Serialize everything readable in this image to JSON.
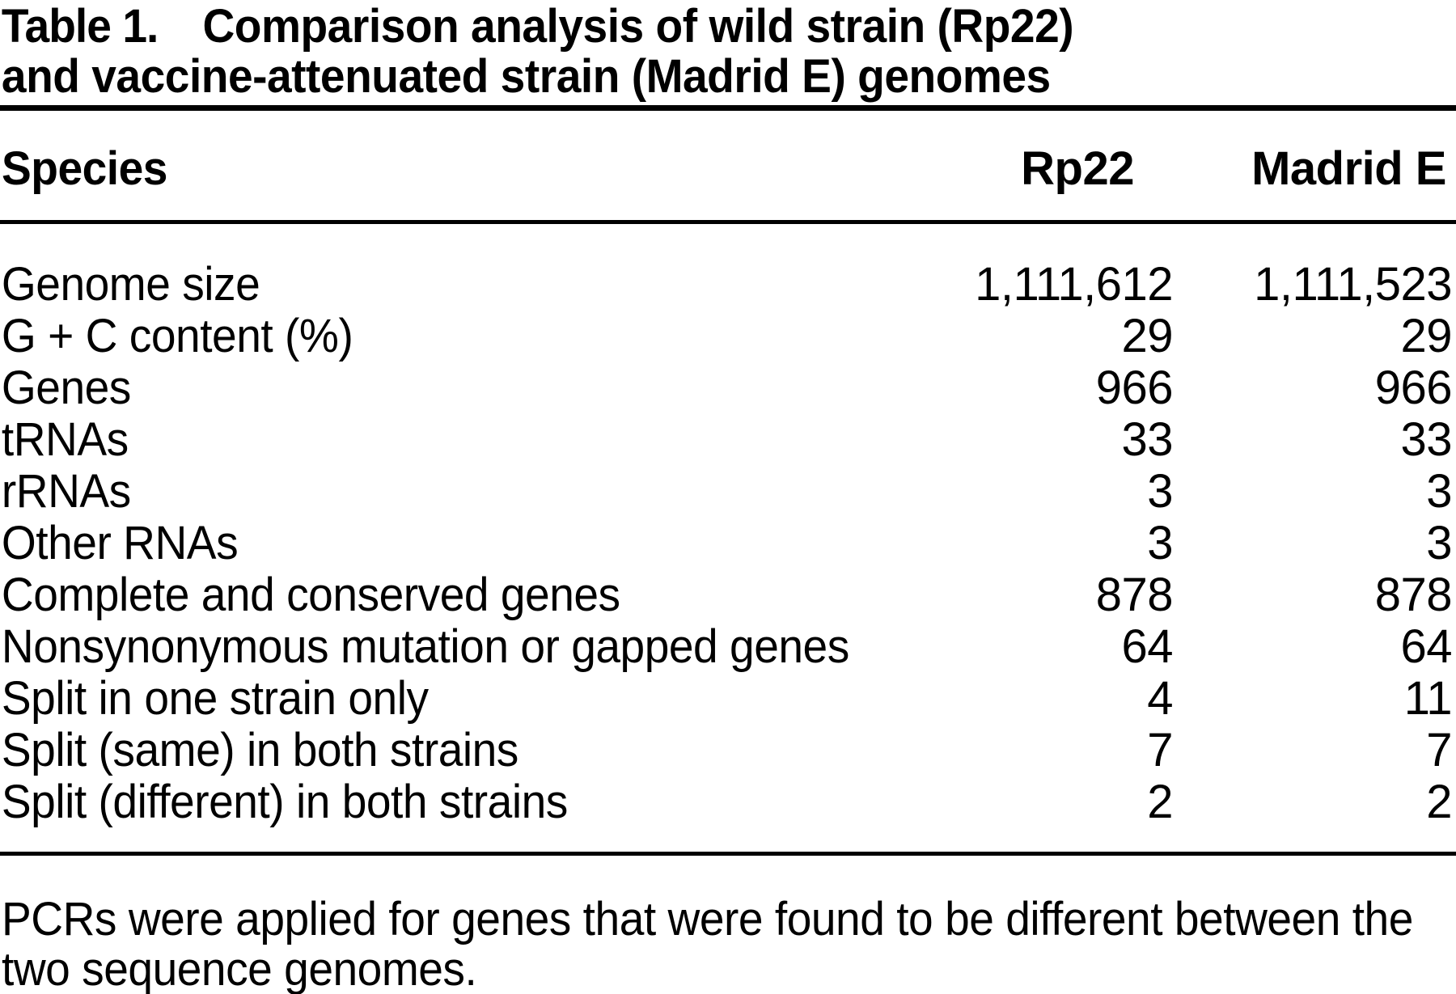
{
  "table": {
    "label": "Table 1.",
    "title_line1": "Comparison analysis of wild strain (Rp22)",
    "title_line2": "and vaccine-attenuated strain (Madrid E) genomes",
    "columns": [
      "Species",
      "Rp22",
      "Madrid E"
    ],
    "rows": [
      {
        "species": "Genome size",
        "rp22": "1,111,612",
        "madrid_e": "1,111,523"
      },
      {
        "species": "G + C content (%)",
        "rp22": "29",
        "madrid_e": "29"
      },
      {
        "species": "Genes",
        "rp22": "966",
        "madrid_e": "966"
      },
      {
        "species": "tRNAs",
        "rp22": "33",
        "madrid_e": "33"
      },
      {
        "species": "rRNAs",
        "rp22": "3",
        "madrid_e": "3"
      },
      {
        "species": "Other RNAs",
        "rp22": "3",
        "madrid_e": "3"
      },
      {
        "species": "Complete and conserved genes",
        "rp22": "878",
        "madrid_e": "878"
      },
      {
        "species": "Nonsynonymous mutation or gapped genes",
        "rp22": "64",
        "madrid_e": "64"
      },
      {
        "species": "Split in one strain only",
        "rp22": "4",
        "madrid_e": "11"
      },
      {
        "species": "Split (same) in both strains",
        "rp22": "7",
        "madrid_e": "7"
      },
      {
        "species": "Split (different) in both strains",
        "rp22": "2",
        "madrid_e": "2"
      }
    ],
    "footnote_line1": "PCRs were applied for genes that were found to be different between the",
    "footnote_line2": "two sequence genomes.",
    "text_color": "#000000",
    "background_color": "#ffffff"
  }
}
